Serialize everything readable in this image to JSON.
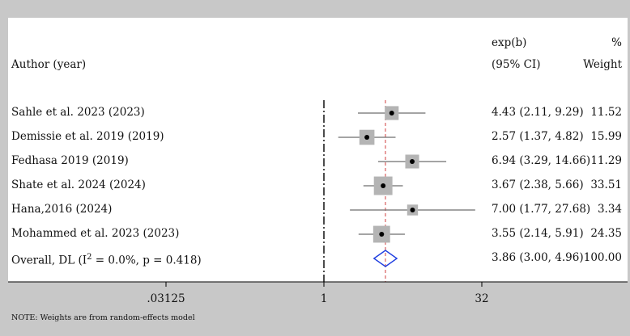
{
  "header": {
    "author_label": "Author (year)",
    "effect_label": "exp(b)",
    "ci_label": "(95% CI)",
    "pct_label": "%",
    "weight_label": "Weight"
  },
  "note": "NOTE: Weights are from random-effects model",
  "chart_data": {
    "type": "forest",
    "scale": "log",
    "null_line": 1,
    "xticks": [
      {
        "value": 0.03125,
        "label": ".03125"
      },
      {
        "value": 1,
        "label": "1"
      },
      {
        "value": 32,
        "label": "32"
      }
    ],
    "studies": [
      {
        "label": "Sahle et al. 2023 (2023)",
        "est": 4.43,
        "lo": 2.11,
        "hi": 9.29,
        "weight": 11.52,
        "ci_text": "4.43 (2.11, 9.29)",
        "weight_text": "11.52"
      },
      {
        "label": "Demissie et al. 2019 (2019)",
        "est": 2.57,
        "lo": 1.37,
        "hi": 4.82,
        "weight": 15.99,
        "ci_text": "2.57 (1.37, 4.82)",
        "weight_text": "15.99"
      },
      {
        "label": "Fedhasa 2019 (2019)",
        "est": 6.94,
        "lo": 3.29,
        "hi": 14.66,
        "weight": 11.29,
        "ci_text": "6.94 (3.29, 14.66)",
        "weight_text": "11.29"
      },
      {
        "label": "Shate et al. 2024 (2024)",
        "est": 3.67,
        "lo": 2.38,
        "hi": 5.66,
        "weight": 33.51,
        "ci_text": "3.67 (2.38, 5.66)",
        "weight_text": "33.51"
      },
      {
        "label": "Hana,2016 (2024)",
        "est": 7.0,
        "lo": 1.77,
        "hi": 27.68,
        "weight": 3.34,
        "ci_text": "7.00 (1.77, 27.68)",
        "weight_text": "3.34"
      },
      {
        "label": "Mohammed et al. 2023 (2023)",
        "est": 3.55,
        "lo": 2.14,
        "hi": 5.91,
        "weight": 24.35,
        "ci_text": "3.55 (2.14, 5.91)",
        "weight_text": "24.35"
      }
    ],
    "overall": {
      "label_prefix": "Overall, DL (I",
      "label_sup": "2",
      "label_suffix": " = 0.0%, p = 0.418)",
      "est": 3.86,
      "lo": 3.0,
      "hi": 4.96,
      "ci_text": "3.86 (3.00, 4.96)",
      "weight_text": "100.00"
    },
    "colors": {
      "box": "#b4b4b4",
      "ci_line": "#6e6e6e",
      "point": "#000000",
      "diamond": "#1f3ee0",
      "overall_line": "#d04040",
      "null_line": "#000000"
    }
  }
}
